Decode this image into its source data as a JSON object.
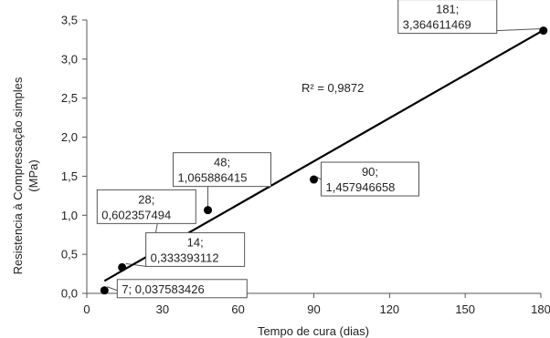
{
  "chart_data": {
    "type": "scatter",
    "xlabel": "Tempo de cura (dias)",
    "ylabel_lines": [
      "Resistencia à Compressação simples",
      "(MPa)"
    ],
    "xlim": [
      0,
      180
    ],
    "ylim": [
      0,
      3.5
    ],
    "x_ticks": [
      0,
      30,
      60,
      90,
      120,
      150,
      180
    ],
    "x_tick_labels": [
      "0",
      "30",
      "60",
      "90",
      "120",
      "150",
      "180"
    ],
    "y_ticks": [
      0,
      0.5,
      1,
      1.5,
      2,
      2.5,
      3,
      3.5
    ],
    "y_tick_labels": [
      "0,0",
      "0,5",
      "1,0",
      "1,5",
      "2,0",
      "2,5",
      "3,0",
      "3,5"
    ],
    "points": [
      {
        "x": 7,
        "y": 0.037583426,
        "label_lines": [
          "7; 0,037583426"
        ]
      },
      {
        "x": 14,
        "y": 0.333393112,
        "label_lines": [
          "14;",
          "0,333393112"
        ]
      },
      {
        "x": 28,
        "y": 0.602357494,
        "label_lines": [
          "28;",
          "0,602357494"
        ]
      },
      {
        "x": 48,
        "y": 1.065886415,
        "label_lines": [
          "48;",
          "1,065886415"
        ]
      },
      {
        "x": 90,
        "y": 1.457946658,
        "label_lines": [
          "90;",
          "1,457946658"
        ]
      },
      {
        "x": 181,
        "y": 3.364611469,
        "label_lines": [
          "181;",
          "3,364611469"
        ]
      }
    ],
    "trendline": {
      "type": "linear",
      "x_start": 7,
      "y_start": 0.16,
      "x_end": 181,
      "y_end": 3.37
    },
    "r_squared_label": "R² = 0,9872",
    "colors": {
      "marker": "#000000",
      "trendline": "#000000",
      "axis": "#555555"
    }
  }
}
